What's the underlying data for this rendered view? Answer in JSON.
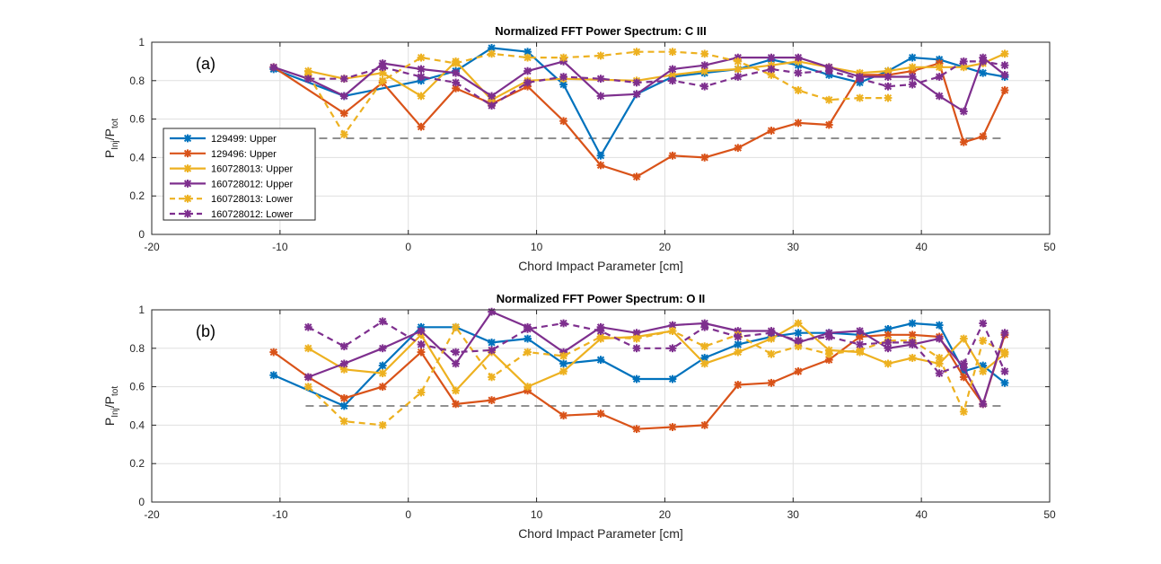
{
  "figure": {
    "chart_data": [
      {
        "type": "line",
        "title": "Normalized FFT Power Spectrum: C III",
        "panel_label": "(a)",
        "xlabel": "Chord Impact Parameter [cm]",
        "ylabel_main": "P",
        "ylabel_sub1": "Inj",
        "ylabel_mid": "/P",
        "ylabel_sub2": "tot",
        "xlim": [
          -20,
          50
        ],
        "ylim": [
          0,
          1
        ],
        "xticks": [
          -20,
          -10,
          0,
          10,
          20,
          30,
          40,
          50
        ],
        "yticks": [
          0,
          0.2,
          0.4,
          0.6,
          0.8,
          1
        ],
        "xtick_labels": [
          "-20",
          "-10",
          "0",
          "10",
          "20",
          "30",
          "40",
          "50"
        ],
        "ytick_labels": [
          "0",
          "0.2",
          "0.4",
          "0.6",
          "0.8",
          "1"
        ],
        "grid": true,
        "legend_position": "left",
        "reference_line": {
          "y": 0.5,
          "x": [
            -8,
            46.5
          ],
          "color": "#808080"
        },
        "series": [
          {
            "name": "129499: Upper",
            "color": "#0072BD",
            "dashed": false,
            "x": [
              -10.5,
              -5,
              1,
              3.7,
              6.5,
              9.3,
              12.1,
              15,
              17.8,
              20.6,
              23.1,
              25.7,
              28.3,
              30.4,
              32.8,
              35.2,
              37.4,
              39.3,
              41.4,
              44.8,
              46.5
            ],
            "y": [
              0.86,
              0.72,
              0.8,
              0.85,
              0.97,
              0.95,
              0.78,
              0.41,
              0.73,
              0.82,
              0.84,
              0.86,
              0.91,
              0.88,
              0.83,
              0.79,
              0.85,
              0.92,
              0.91,
              0.84,
              0.82
            ]
          },
          {
            "name": "129496: Upper",
            "color": "#D95319",
            "dashed": false,
            "x": [
              -10.5,
              -5,
              -2,
              1,
              3.7,
              6.5,
              9.3,
              12.1,
              15,
              17.8,
              20.6,
              23.1,
              25.7,
              28.3,
              30.4,
              32.8,
              35.2,
              37.4,
              39.3,
              41.4,
              43.3,
              44.8,
              46.5
            ],
            "y": [
              0.87,
              0.63,
              0.79,
              0.56,
              0.76,
              0.68,
              0.77,
              0.59,
              0.36,
              0.3,
              0.41,
              0.4,
              0.45,
              0.54,
              0.58,
              0.57,
              0.83,
              0.83,
              0.85,
              0.89,
              0.48,
              0.51,
              0.75
            ]
          },
          {
            "name": "160728013: Upper",
            "color": "#EDB120",
            "dashed": false,
            "x": [
              -7.8,
              -5,
              -2,
              1,
              3.7,
              6.5,
              9.3,
              12.1,
              17.8,
              20.6,
              23.1,
              25.7,
              28.3,
              30.4,
              32.8,
              35.2,
              37.4,
              39.3,
              41.4,
              43.3,
              44.8,
              46.5
            ],
            "y": [
              0.85,
              0.81,
              0.84,
              0.72,
              0.9,
              0.7,
              0.8,
              0.81,
              0.8,
              0.83,
              0.85,
              0.86,
              0.88,
              0.9,
              0.87,
              0.84,
              0.85,
              0.87,
              0.87,
              0.87,
              0.89,
              0.94
            ]
          },
          {
            "name": "160728012: Upper",
            "color": "#7E2F8E",
            "dashed": false,
            "x": [
              -10.5,
              -7.8,
              -5,
              -2,
              1,
              3.7,
              6.5,
              9.3,
              12.1,
              15,
              17.8,
              20.6,
              23.1,
              25.7,
              28.3,
              30.4,
              32.8,
              35.2,
              37.4,
              39.3,
              41.4,
              43.3,
              44.8,
              46.5
            ],
            "y": [
              0.87,
              0.81,
              0.72,
              0.89,
              0.86,
              0.84,
              0.72,
              0.85,
              0.9,
              0.72,
              0.73,
              0.86,
              0.88,
              0.92,
              0.92,
              0.92,
              0.87,
              0.82,
              0.82,
              0.82,
              0.72,
              0.64,
              0.92,
              0.83
            ]
          },
          {
            "name": "160728013: Lower",
            "color": "#EDB120",
            "dashed": true,
            "x": [
              -7.8,
              -5,
              -2,
              1,
              3.7,
              6.5,
              9.3,
              12.1,
              15,
              17.8,
              20.6,
              23.1,
              25.7,
              28.3,
              30.4,
              32.8,
              35.2,
              37.4
            ],
            "y": [
              0.83,
              0.52,
              0.8,
              0.92,
              0.89,
              0.94,
              0.92,
              0.92,
              0.93,
              0.95,
              0.95,
              0.94,
              0.9,
              0.83,
              0.75,
              0.7,
              0.71,
              0.71
            ]
          },
          {
            "name": "160728012: Lower",
            "color": "#7E2F8E",
            "dashed": true,
            "x": [
              -7.8,
              -5,
              -2,
              1,
              3.7,
              6.5,
              9.3,
              12.1,
              15,
              17.8,
              20.6,
              23.1,
              25.7,
              28.3,
              30.4,
              32.8,
              35.2,
              37.4,
              39.3,
              41.4,
              43.3,
              44.8,
              46.5
            ],
            "y": [
              0.81,
              0.81,
              0.87,
              0.82,
              0.79,
              0.67,
              0.79,
              0.82,
              0.81,
              0.79,
              0.8,
              0.77,
              0.82,
              0.86,
              0.84,
              0.85,
              0.81,
              0.77,
              0.78,
              0.82,
              0.9,
              0.9,
              0.88
            ]
          }
        ]
      },
      {
        "type": "line",
        "title": "Normalized FFT Power Spectrum: O II",
        "panel_label": "(b)",
        "xlabel": "Chord Impact Parameter [cm]",
        "ylabel_main": "P",
        "ylabel_sub1": "Inj",
        "ylabel_mid": "/P",
        "ylabel_sub2": "tot",
        "xlim": [
          -20,
          50
        ],
        "ylim": [
          0,
          1
        ],
        "xticks": [
          -20,
          -10,
          0,
          10,
          20,
          30,
          40,
          50
        ],
        "yticks": [
          0,
          0.2,
          0.4,
          0.6,
          0.8,
          1
        ],
        "xtick_labels": [
          "-20",
          "-10",
          "0",
          "10",
          "20",
          "30",
          "40",
          "50"
        ],
        "ytick_labels": [
          "0",
          "0.2",
          "0.4",
          "0.6",
          "0.8",
          "1"
        ],
        "grid": true,
        "reference_line": {
          "y": 0.5,
          "x": [
            -8,
            46.5
          ],
          "color": "#808080"
        },
        "series": [
          {
            "name": "129499: Upper",
            "color": "#0072BD",
            "dashed": false,
            "x": [
              -10.5,
              -5,
              -2,
              1,
              3.7,
              6.5,
              9.3,
              12.1,
              15,
              17.8,
              20.6,
              23.1,
              25.7,
              28.3,
              30.4,
              32.8,
              35.2,
              37.4,
              39.3,
              41.4,
              43.3,
              44.8,
              46.5
            ],
            "y": [
              0.66,
              0.5,
              0.71,
              0.91,
              0.91,
              0.83,
              0.85,
              0.72,
              0.74,
              0.64,
              0.64,
              0.75,
              0.82,
              0.86,
              0.88,
              0.88,
              0.87,
              0.9,
              0.93,
              0.92,
              0.68,
              0.71,
              0.62
            ]
          },
          {
            "name": "129496: Upper",
            "color": "#D95319",
            "dashed": false,
            "x": [
              -10.5,
              -7.8,
              -5,
              -2,
              1,
              3.7,
              6.5,
              9.3,
              12.1,
              15,
              17.8,
              20.6,
              23.1,
              25.7,
              28.3,
              30.4,
              32.8,
              35.2,
              37.4,
              39.3,
              41.4,
              43.3,
              44.8,
              46.5
            ],
            "y": [
              0.78,
              0.65,
              0.54,
              0.6,
              0.78,
              0.51,
              0.53,
              0.58,
              0.45,
              0.46,
              0.38,
              0.39,
              0.4,
              0.61,
              0.62,
              0.68,
              0.74,
              0.86,
              0.87,
              0.87,
              0.86,
              0.65,
              0.51,
              0.87
            ]
          },
          {
            "name": "160728013: Upper",
            "color": "#EDB120",
            "dashed": false,
            "x": [
              -7.8,
              -5,
              -2,
              1,
              3.7,
              6.5,
              9.3,
              12.1,
              15,
              17.8,
              20.6,
              23.1,
              25.7,
              28.3,
              30.4,
              32.8,
              35.2,
              37.4,
              39.3,
              41.4,
              43.3,
              44.8,
              46.5
            ],
            "y": [
              0.8,
              0.69,
              0.67,
              0.87,
              0.58,
              0.78,
              0.6,
              0.68,
              0.85,
              0.86,
              0.89,
              0.72,
              0.78,
              0.85,
              0.93,
              0.79,
              0.78,
              0.72,
              0.75,
              0.72,
              0.85,
              0.68,
              0.77
            ]
          },
          {
            "name": "160728012: Upper",
            "color": "#7E2F8E",
            "dashed": false,
            "x": [
              -7.8,
              -5,
              -2,
              1,
              3.7,
              6.5,
              9.3,
              12.1,
              15,
              17.8,
              20.6,
              23.1,
              25.7,
              28.3,
              30.4,
              32.8,
              35.2,
              37.4,
              39.3,
              41.4,
              43.3,
              44.8,
              46.5
            ],
            "y": [
              0.65,
              0.72,
              0.8,
              0.89,
              0.72,
              0.99,
              0.91,
              0.78,
              0.91,
              0.88,
              0.92,
              0.93,
              0.89,
              0.89,
              0.83,
              0.88,
              0.89,
              0.8,
              0.82,
              0.85,
              0.7,
              0.51,
              0.88
            ]
          },
          {
            "name": "160728013: Lower",
            "color": "#EDB120",
            "dashed": true,
            "x": [
              -7.8,
              -5,
              -2,
              1,
              3.7,
              6.5,
              9.3,
              12.1,
              15,
              17.8,
              20.6,
              23.1,
              25.7,
              28.3,
              30.4,
              32.8,
              35.2,
              37.4,
              39.3,
              41.4,
              43.3,
              44.8,
              46.5
            ],
            "y": [
              0.6,
              0.42,
              0.4,
              0.57,
              0.91,
              0.65,
              0.78,
              0.76,
              0.86,
              0.85,
              0.89,
              0.81,
              0.87,
              0.77,
              0.81,
              0.77,
              0.79,
              0.84,
              0.84,
              0.75,
              0.47,
              0.84,
              0.78
            ]
          },
          {
            "name": "160728012: Lower",
            "color": "#7E2F8E",
            "dashed": true,
            "x": [
              -7.8,
              -5,
              -2,
              1,
              3.7,
              6.5,
              9.3,
              12.1,
              15,
              17.8,
              20.6,
              23.1,
              25.7,
              28.3,
              30.4,
              32.8,
              35.2,
              37.4,
              39.3,
              41.4,
              43.3,
              44.8,
              46.5
            ],
            "y": [
              0.91,
              0.81,
              0.94,
              0.82,
              0.78,
              0.79,
              0.9,
              0.93,
              0.89,
              0.8,
              0.8,
              0.91,
              0.86,
              0.88,
              0.84,
              0.86,
              0.82,
              0.83,
              0.83,
              0.67,
              0.72,
              0.93,
              0.68
            ]
          }
        ]
      }
    ]
  }
}
